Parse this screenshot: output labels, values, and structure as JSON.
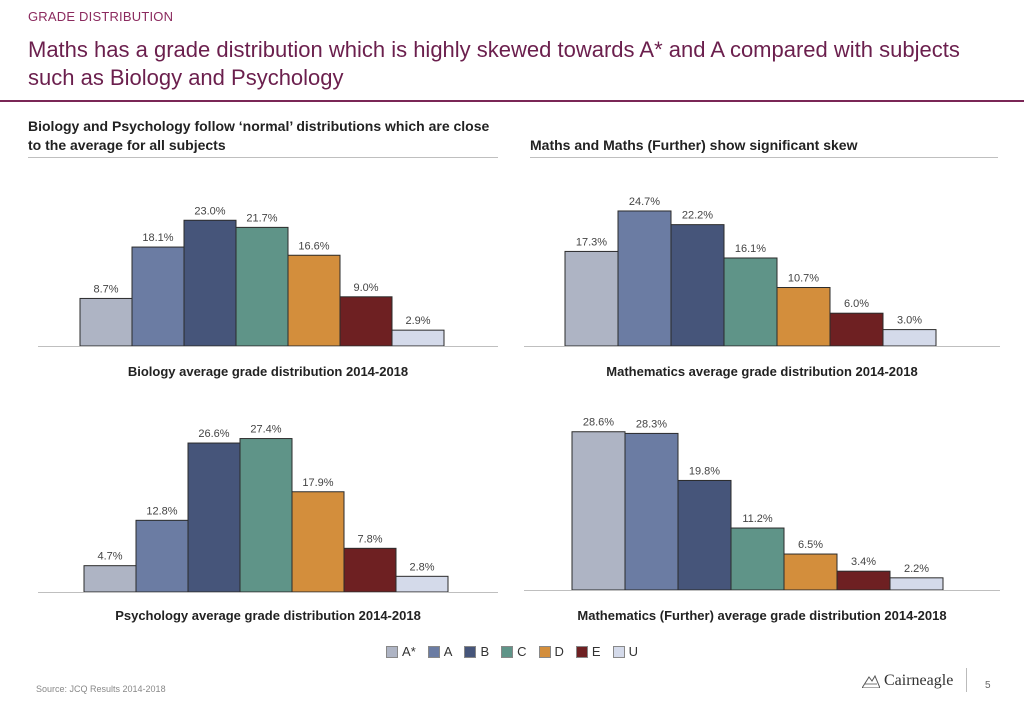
{
  "header": {
    "section": "GRADE DISTRIBUTION",
    "title": "Maths has a grade distribution which is highly skewed towards A* and A compared with subjects such as Biology and Psychology"
  },
  "left_heading": "Biology and Psychology follow ‘normal’ distributions which are close to the average for all subjects",
  "right_heading": "Maths and Maths (Further) show significant skew",
  "colors": {
    "A*": "#aeb4c4",
    "A": "#6b7ca3",
    "B": "#46557a",
    "C": "#5f9488",
    "D": "#d38e3c",
    "E": "#6e2022",
    "U": "#d4daea"
  },
  "legend": [
    "A*",
    "A",
    "B",
    "C",
    "D",
    "E",
    "U"
  ],
  "chart_data": [
    {
      "type": "bar",
      "title": "Biology average grade distribution 2014-2018",
      "categories": [
        "A*",
        "A",
        "B",
        "C",
        "D",
        "E",
        "U"
      ],
      "values": [
        8.7,
        18.1,
        23.0,
        21.7,
        16.6,
        9.0,
        2.9
      ],
      "labels": [
        "8.7%",
        "18.1%",
        "23.0%",
        "21.7%",
        "16.6%",
        "9.0%",
        "2.9%"
      ],
      "ylim": [
        0,
        30
      ]
    },
    {
      "type": "bar",
      "title": "Mathematics average grade distribution 2014-2018",
      "categories": [
        "A*",
        "A",
        "B",
        "C",
        "D",
        "E",
        "U"
      ],
      "values": [
        17.3,
        24.7,
        22.2,
        16.1,
        10.7,
        6.0,
        3.0
      ],
      "labels": [
        "17.3%",
        "24.7%",
        "22.2%",
        "16.1%",
        "10.7%",
        "6.0%",
        "3.0%"
      ],
      "ylim": [
        0,
        30
      ]
    },
    {
      "type": "bar",
      "title": "Psychology average grade distribution 2014-2018",
      "categories": [
        "A*",
        "A",
        "B",
        "C",
        "D",
        "E",
        "U"
      ],
      "values": [
        4.7,
        12.8,
        26.6,
        27.4,
        17.9,
        7.8,
        2.8
      ],
      "labels": [
        "4.7%",
        "12.8%",
        "26.6%",
        "27.4%",
        "17.9%",
        "7.8%",
        "2.8%"
      ],
      "ylim": [
        0,
        30
      ]
    },
    {
      "type": "bar",
      "title": "Mathematics (Further) average grade distribution 2014-2018",
      "categories": [
        "A*",
        "A",
        "B",
        "C",
        "D",
        "E",
        "U"
      ],
      "values": [
        28.6,
        28.3,
        19.8,
        11.2,
        6.5,
        3.4,
        2.2
      ],
      "labels": [
        "28.6%",
        "28.3%",
        "19.8%",
        "11.2%",
        "6.5%",
        "3.4%",
        "2.2%"
      ],
      "ylim": [
        0,
        30
      ]
    }
  ],
  "footer": {
    "source": "Source: JCQ Results 2014-2018",
    "logo_text": "Cairneagle",
    "page_number": "5"
  }
}
